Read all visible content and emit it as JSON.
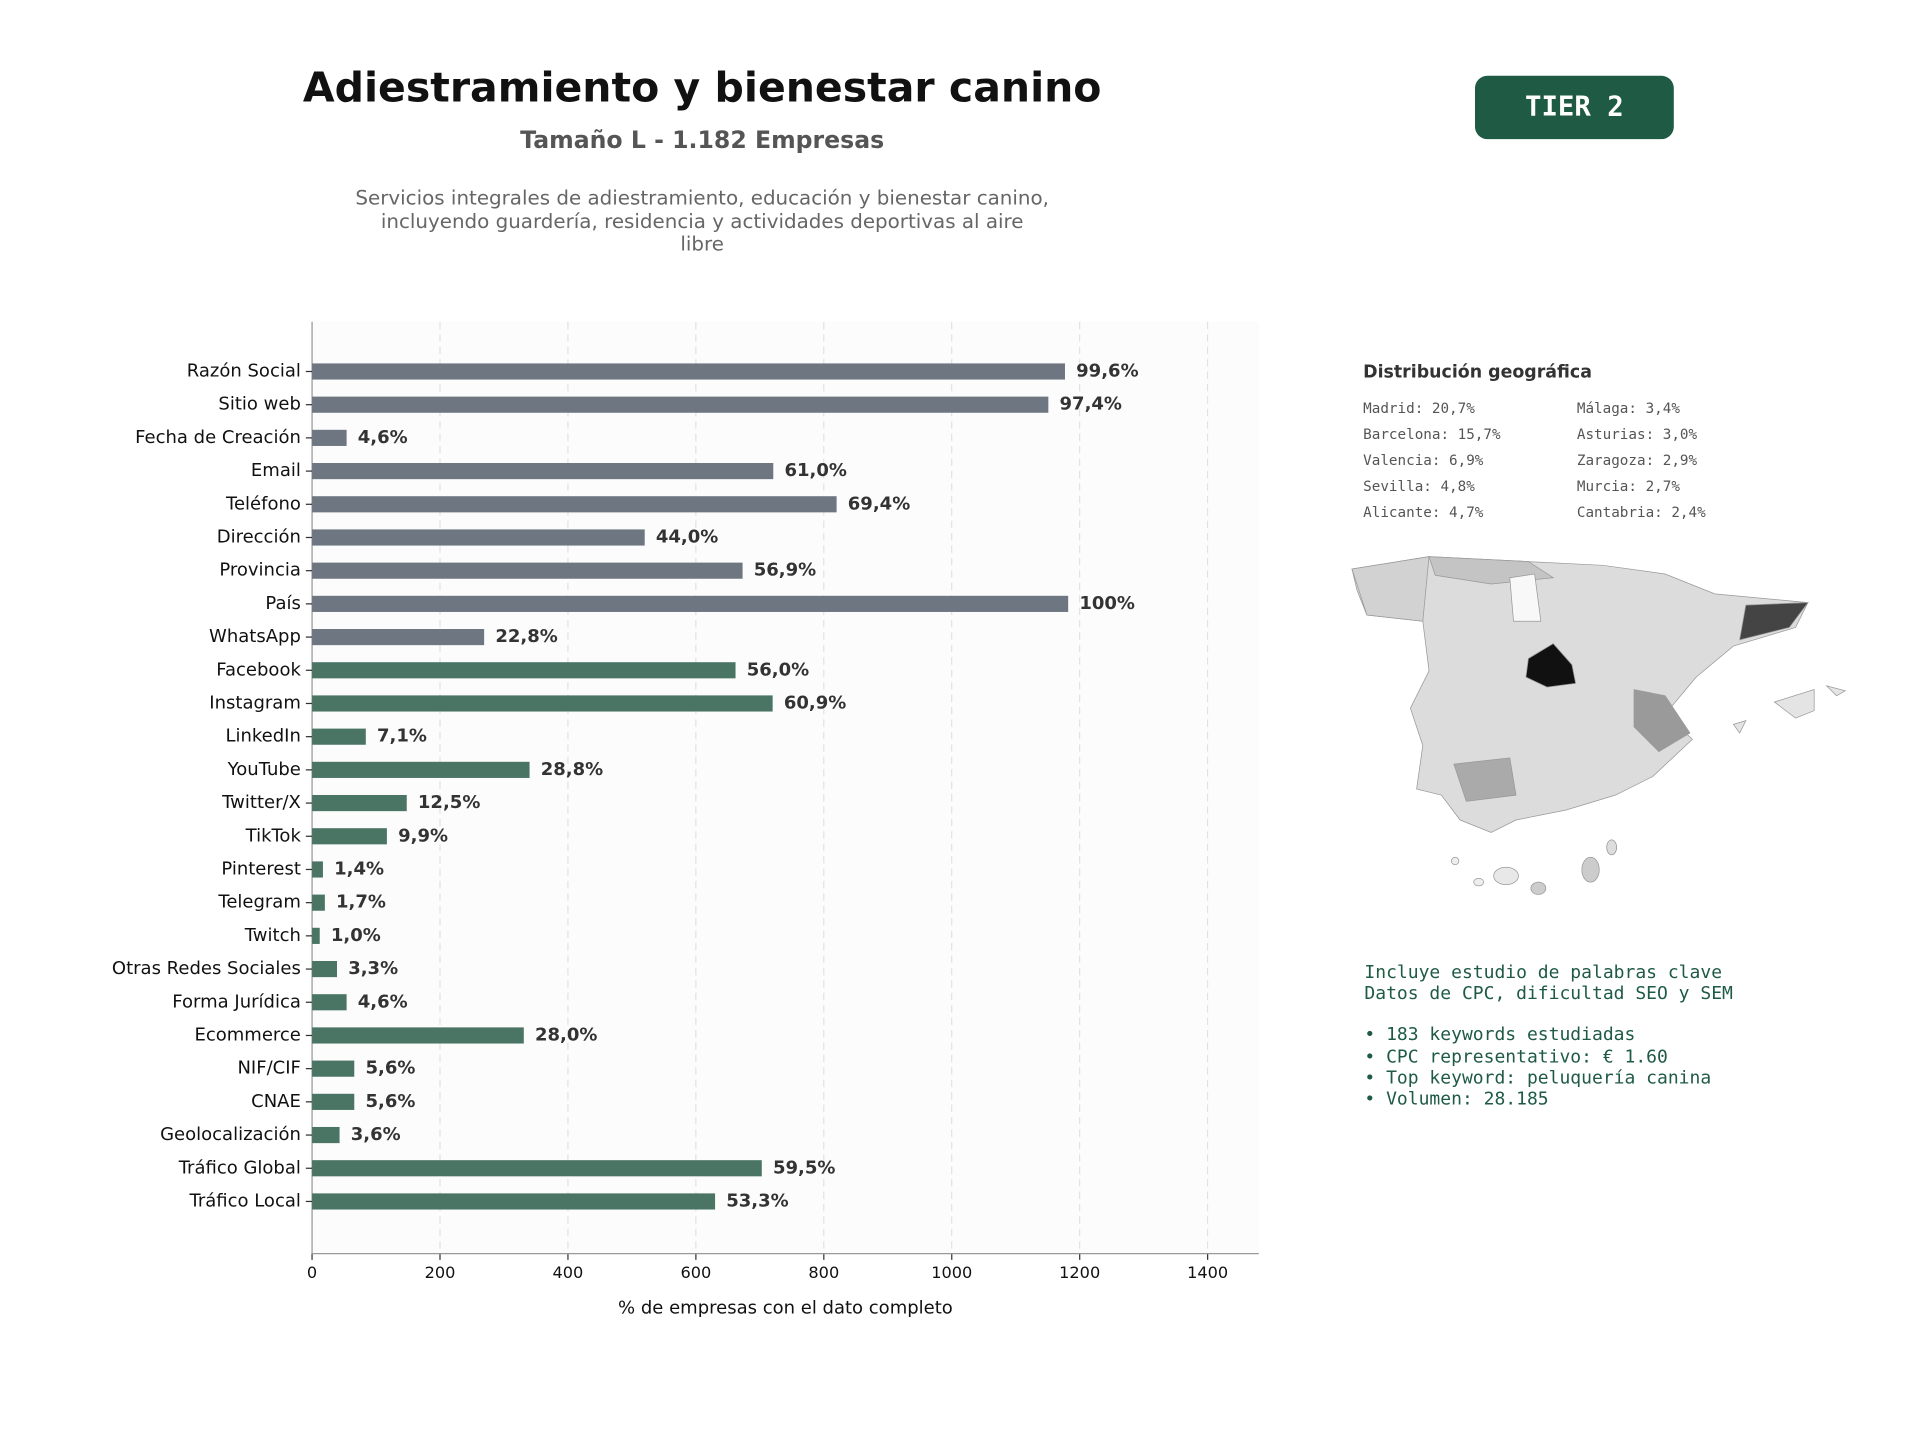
{
  "chart_data": {
    "type": "bar",
    "orientation": "horizontal",
    "x_label": "% de empresas con el dato completo",
    "categories": [
      "Razón Social",
      "Sitio web",
      "Fecha de Creación",
      "Email",
      "Teléfono",
      "Dirección",
      "Provincia",
      "País",
      "WhatsApp",
      "Facebook",
      "Instagram",
      "LinkedIn",
      "YouTube",
      "Twitter/X",
      "TikTok",
      "Pinterest",
      "Telegram",
      "Twitch",
      "Otras Redes Sociales",
      "Forma Jurídica",
      "Ecommerce",
      "NIF/CIF",
      "CNAE",
      "Geolocalización",
      "Tráfico Global",
      "Tráfico Local"
    ],
    "values": [
      1177,
      1151,
      54,
      721,
      820,
      520,
      673,
      1182,
      269,
      662,
      720,
      84,
      340,
      148,
      117,
      17,
      20,
      12,
      39,
      54,
      331,
      66,
      66,
      43,
      703,
      630
    ],
    "value_labels": [
      "99,6%",
      "97,4%",
      "4,6%",
      "61,0%",
      "69,4%",
      "44,0%",
      "56,9%",
      "100%",
      "22,8%",
      "56,0%",
      "60,9%",
      "7,1%",
      "28,8%",
      "12,5%",
      "9,9%",
      "1,4%",
      "1,7%",
      "1,0%",
      "3,3%",
      "4,6%",
      "28,0%",
      "5,6%",
      "5,6%",
      "3,6%",
      "59,5%",
      "53,3%"
    ],
    "colors": [
      "#6e7781",
      "#6e7781",
      "#6e7781",
      "#6e7781",
      "#6e7781",
      "#6e7781",
      "#6e7781",
      "#6e7781",
      "#6e7781",
      "#4a7565",
      "#4a7565",
      "#4a7565",
      "#4a7565",
      "#4a7565",
      "#4a7565",
      "#4a7565",
      "#4a7565",
      "#4a7565",
      "#4a7565",
      "#4a7565",
      "#4a7565",
      "#4a7565",
      "#4a7565",
      "#4a7565",
      "#4a7565",
      "#4a7565"
    ],
    "xlim": [
      0,
      1480
    ],
    "xticks": [
      0,
      200,
      400,
      600,
      800,
      1000,
      1200,
      1400
    ],
    "grid": true
  },
  "header": {
    "title": "Adiestramiento y bienestar canino",
    "subtitle": "Tamaño L - 1.182 Empresas",
    "description": [
      "Servicios integrales de adiestramiento, educación y bienestar canino,",
      "incluyendo guardería, residencia y actividades deportivas al aire",
      "libre"
    ]
  },
  "badge": "TIER 2",
  "geo": {
    "title": "Distribución geográfica",
    "items": [
      "Madrid: 20,7%",
      "Barcelona: 15,7%",
      "Valencia: 6,9%",
      "Sevilla: 4,8%",
      "Alicante: 4,7%",
      "Málaga: 3,4%",
      "Asturias: 3,0%",
      "Zaragoza: 2,9%",
      "Murcia: 2,7%",
      "Cantabria: 2,4%"
    ]
  },
  "info": {
    "lines": [
      "Incluye estudio de palabras clave",
      "Datos de CPC, dificultad SEO y SEM",
      "• 183 keywords estudiadas",
      "• CPC representativo: € 1.60",
      "• Top keyword: peluquería canina",
      "• Volumen: 28.185"
    ]
  }
}
